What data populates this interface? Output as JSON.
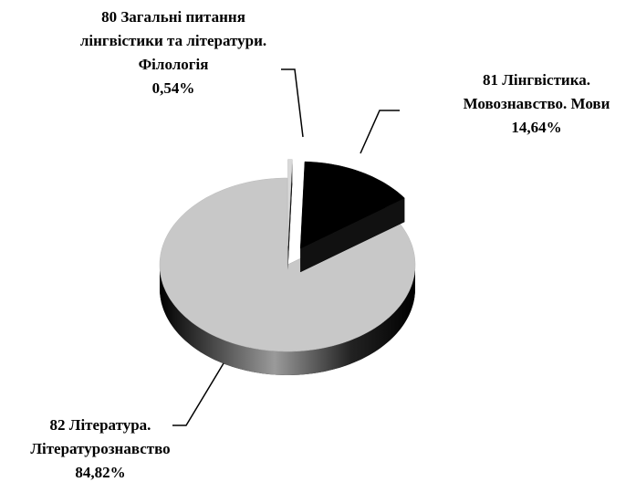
{
  "chart_data": {
    "type": "pie3d",
    "categories": [
      "80 Загальні питання лінгвістики та літератури. Філологія",
      "81 Лінгвістика. Мовознавство. Мови",
      "82 Література. Літературознавство"
    ],
    "values": [
      0.54,
      14.64,
      84.82
    ],
    "value_labels": [
      "0,54%",
      "14,64%",
      "84,82%"
    ],
    "colors": [
      "#d9d9d9",
      "#000000",
      "#c8c8c8"
    ],
    "exploded": [
      true,
      true,
      false
    ]
  }
}
